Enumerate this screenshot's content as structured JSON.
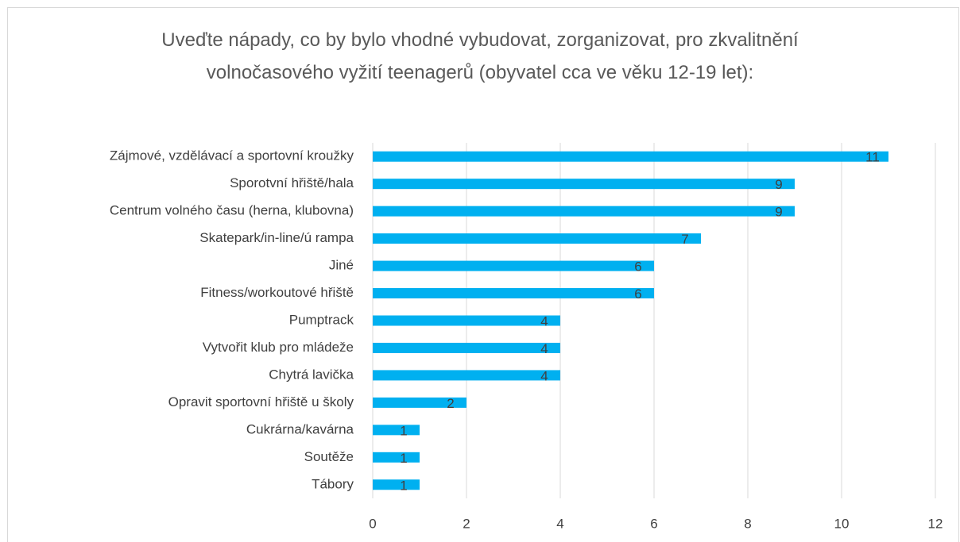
{
  "chart_data": {
    "type": "barh",
    "title": "Uveďte nápady, co by bylo vhodné vybudovat, zorganizovat, pro zkvalitnění volnočasového vyžití teenagerů (obyvatel cca ve věku 12-19 let):",
    "categories": [
      "Zájmové, vzdělávací a sportovní kroužky",
      "Sporotvní hřiště/hala",
      "Centrum volného času (herna, klubovna)",
      "Skatepark/in-line/ú rampa",
      "Jiné",
      "Fitness/workoutové hřiště",
      "Pumptrack",
      "Vytvořit klub pro mládeže",
      "Chytrá lavička",
      "Opravit sportovní hřiště u školy",
      "Cukrárna/kavárna",
      "Soutěže",
      "Tábory"
    ],
    "values": [
      11,
      9,
      9,
      7,
      6,
      6,
      4,
      4,
      4,
      2,
      1,
      1,
      1
    ],
    "color": "#00b0f0",
    "xlim": [
      0,
      12
    ],
    "xticks": [
      0,
      2,
      4,
      6,
      8,
      10,
      12
    ],
    "grid": true
  }
}
